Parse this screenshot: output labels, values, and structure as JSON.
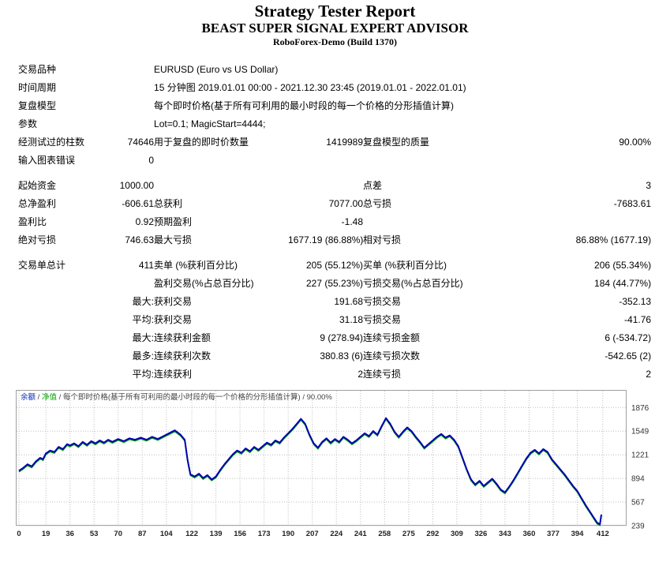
{
  "header": {
    "title": "Strategy Tester Report",
    "subtitle": "BEAST SUPER SIGNAL EXPERT ADVISOR",
    "server": "RoboForex-Demo (Build 1370)"
  },
  "info_rows": [
    {
      "label": "交易品种",
      "value": "EURUSD (Euro vs US Dollar)"
    },
    {
      "label": "时间周期",
      "value": "15 分钟图 2019.01.01 00:00 - 2021.12.30 23:45 (2019.01.01 - 2022.01.01)"
    },
    {
      "label": "复盘模型",
      "value": "每个即时价格(基于所有可利用的最小时段的每一个价格的分形插值计算)"
    },
    {
      "label": "参数",
      "value": "Lot=0.1; MagicStart=4444;"
    }
  ],
  "stats_rows": [
    {
      "cells": [
        "经测试过的柱数",
        "74646",
        "用于复盘的即时价数量",
        "1419989",
        "复盘模型的质量",
        "90.00%"
      ]
    },
    {
      "cells": [
        "输入图表错误",
        "0",
        "",
        "",
        "",
        ""
      ]
    },
    {
      "gap": true,
      "cells": [
        "起始资金",
        "1000.00",
        "",
        "",
        "点差",
        "3"
      ]
    },
    {
      "cells": [
        "总净盈利",
        "-606.61",
        "总获利",
        "7077.00",
        "总亏损",
        "-7683.61"
      ]
    },
    {
      "cells": [
        "盈利比",
        "0.92",
        "预期盈利",
        "-1.48",
        "",
        ""
      ]
    },
    {
      "cells": [
        "绝对亏损",
        "746.63",
        "最大亏损",
        "1677.19 (86.88%)",
        "相对亏损",
        "86.88% (1677.19)"
      ]
    },
    {
      "gap": true,
      "cells": [
        "交易单总计",
        "411",
        "卖单 (%获利百分比)",
        "205 (55.12%)",
        "买单 (%获利百分比)",
        "206 (55.34%)"
      ]
    },
    {
      "cells": [
        "",
        "",
        "盈利交易(%占总百分比)",
        "227 (55.23%)",
        "亏损交易(%占总百分比)",
        "184 (44.77%)"
      ]
    },
    {
      "cells": [
        "",
        "最大:",
        "获利交易",
        "191.68",
        "亏损交易",
        "-352.13"
      ]
    },
    {
      "cells": [
        "",
        "平均:",
        "获利交易",
        "31.18",
        "亏损交易",
        "-41.76"
      ]
    },
    {
      "cells": [
        "",
        "最大:",
        "连续获利金额",
        "9 (278.94)",
        "连续亏损金额",
        "6 (-534.72)"
      ]
    },
    {
      "cells": [
        "",
        "最多:",
        "连续获利次数",
        "380.83 (6)",
        "连续亏损次数",
        "-542.65 (2)"
      ]
    },
    {
      "cells": [
        "",
        "平均:",
        "连续获利",
        "2",
        "连续亏损",
        "2"
      ]
    }
  ],
  "chart_data": {
    "type": "line",
    "title": "Balance / Equity curve",
    "legend": [
      {
        "text": "余额",
        "color": "#0026bd"
      },
      {
        "text": " / ",
        "color": "#444444"
      },
      {
        "text": "净值",
        "color": "#00a000"
      },
      {
        "text": " / 每个即时价格(基于所有可利用的最小时段的每一个价格的分形插值计算) / 90.00%",
        "color": "#444444"
      }
    ],
    "x_ticks": [
      0,
      19,
      36,
      53,
      70,
      87,
      104,
      122,
      139,
      156,
      173,
      190,
      207,
      224,
      241,
      258,
      275,
      292,
      309,
      326,
      343,
      360,
      377,
      394,
      412
    ],
    "y_ticks": [
      1876,
      1549,
      1221,
      894,
      567,
      239
    ],
    "xlim": [
      0,
      421
    ],
    "ylim": [
      239,
      2120
    ],
    "grid": true,
    "legend_position": "top-left",
    "series": [
      {
        "name": "余额",
        "color": "#0000b4",
        "x": [
          0,
          3,
          6,
          9,
          12,
          15,
          17,
          19,
          22,
          25,
          28,
          31,
          34,
          36,
          39,
          42,
          45,
          48,
          51,
          54,
          57,
          60,
          63,
          66,
          70,
          74,
          78,
          82,
          86,
          90,
          94,
          98,
          102,
          106,
          110,
          114,
          117,
          119,
          121,
          124,
          127,
          130,
          133,
          136,
          139,
          142,
          145,
          148,
          151,
          154,
          157,
          160,
          163,
          166,
          169,
          172,
          175,
          178,
          181,
          184,
          187,
          190,
          193,
          196,
          199,
          202,
          205,
          208,
          211,
          214,
          217,
          220,
          223,
          226,
          229,
          232,
          235,
          238,
          241,
          244,
          247,
          250,
          253,
          256,
          259,
          262,
          265,
          268,
          271,
          274,
          277,
          280,
          283,
          286,
          289,
          292,
          295,
          298,
          301,
          304,
          307,
          310,
          313,
          316,
          319,
          322,
          325,
          328,
          331,
          334,
          337,
          340,
          343,
          346,
          349,
          352,
          355,
          358,
          361,
          364,
          367,
          370,
          373,
          376,
          379,
          382,
          385,
          388,
          391,
          394,
          397,
          400,
          403,
          406,
          408,
          410,
          411
        ],
        "y": [
          1000,
          1040,
          1090,
          1060,
          1130,
          1180,
          1160,
          1240,
          1280,
          1260,
          1330,
          1300,
          1370,
          1350,
          1380,
          1340,
          1400,
          1360,
          1410,
          1380,
          1420,
          1390,
          1430,
          1400,
          1440,
          1410,
          1450,
          1430,
          1460,
          1430,
          1470,
          1440,
          1480,
          1520,
          1560,
          1500,
          1430,
          1150,
          950,
          920,
          960,
          900,
          940,
          880,
          920,
          1010,
          1090,
          1160,
          1230,
          1280,
          1250,
          1310,
          1270,
          1330,
          1290,
          1340,
          1390,
          1360,
          1420,
          1390,
          1460,
          1520,
          1580,
          1650,
          1720,
          1650,
          1500,
          1380,
          1320,
          1400,
          1450,
          1390,
          1440,
          1400,
          1470,
          1430,
          1380,
          1420,
          1470,
          1520,
          1480,
          1550,
          1500,
          1620,
          1730,
          1650,
          1540,
          1470,
          1540,
          1600,
          1550,
          1470,
          1400,
          1320,
          1370,
          1420,
          1470,
          1510,
          1460,
          1490,
          1430,
          1340,
          1180,
          1020,
          880,
          810,
          860,
          790,
          840,
          890,
          820,
          740,
          700,
          780,
          870,
          970,
          1070,
          1170,
          1250,
          1290,
          1240,
          1300,
          1260,
          1160,
          1090,
          1020,
          950,
          870,
          790,
          720,
          620,
          520,
          430,
          340,
          280,
          260,
          393
        ]
      },
      {
        "name": "净值",
        "color": "#00a000",
        "note": "overlaps balance line"
      }
    ]
  }
}
